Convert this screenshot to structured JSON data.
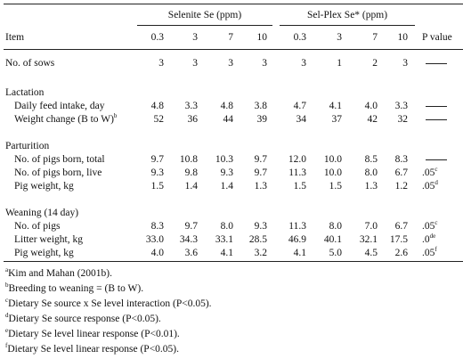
{
  "header": {
    "group1": "Selenite Se (ppm)",
    "group2": "Sel-Plex Se* (ppm)",
    "item": "Item",
    "levels": [
      "0.3",
      "3",
      "7",
      "10",
      "0.3",
      "3",
      "7",
      "10"
    ],
    "pvalue": "P value"
  },
  "rows": [
    {
      "type": "data",
      "label": "No. of sows",
      "values": [
        "3",
        "3",
        "3",
        "3",
        "3",
        "1",
        "2",
        "3"
      ],
      "p": "",
      "p_dash": true,
      "p_sup": ""
    },
    {
      "type": "section",
      "label": "Lactation"
    },
    {
      "type": "data",
      "sub": true,
      "label": "Daily feed intake, day",
      "values": [
        "4.8",
        "3.3",
        "4.8",
        "3.8",
        "4.7",
        "4.1",
        "4.0",
        "3.3"
      ],
      "p": "",
      "p_dash": true,
      "p_sup": ""
    },
    {
      "type": "data",
      "sub": true,
      "label": "Weight change (B to W)",
      "label_sup": "b",
      "values": [
        "52",
        "36",
        "44",
        "39",
        "34",
        "37",
        "42",
        "32"
      ],
      "p": "",
      "p_dash": true,
      "p_sup": ""
    },
    {
      "type": "section",
      "label": "Parturition"
    },
    {
      "type": "data",
      "sub": true,
      "label": "No. of pigs born, total",
      "values": [
        "9.7",
        "10.8",
        "10.3",
        "9.7",
        "12.0",
        "10.0",
        "8.5",
        "8.3"
      ],
      "p": "",
      "p_dash": true,
      "p_sup": ""
    },
    {
      "type": "data",
      "sub": true,
      "label": "No. of pigs born, live",
      "values": [
        "9.3",
        "9.8",
        "9.3",
        "9.7",
        "11.3",
        "10.0",
        "8.0",
        "6.7"
      ],
      "p": ".05",
      "p_dash": false,
      "p_sup": "c"
    },
    {
      "type": "data",
      "sub": true,
      "label": "Pig weight, kg",
      "values": [
        "1.5",
        "1.4",
        "1.4",
        "1.3",
        "1.5",
        "1.5",
        "1.3",
        "1.2"
      ],
      "p": ".05",
      "p_dash": false,
      "p_sup": "d"
    },
    {
      "type": "section",
      "label": "Weaning (14 day)"
    },
    {
      "type": "data",
      "sub": true,
      "label": "No. of pigs",
      "values": [
        "8.3",
        "9.7",
        "8.0",
        "9.3",
        "11.3",
        "8.0",
        "7.0",
        "6.7"
      ],
      "p": ".05",
      "p_dash": false,
      "p_sup": "c"
    },
    {
      "type": "data",
      "sub": true,
      "label": "Litter weight, kg",
      "values": [
        "33.0",
        "34.3",
        "33.1",
        "28.5",
        "46.9",
        "40.1",
        "32.1",
        "17.5"
      ],
      "p": ".0",
      "p_dash": false,
      "p_sup": "de"
    },
    {
      "type": "data",
      "sub": true,
      "label": "Pig weight, kg",
      "values": [
        "4.0",
        "3.6",
        "4.1",
        "3.2",
        "4.1",
        "5.0",
        "4.5",
        "2.6"
      ],
      "p": ".05",
      "p_dash": false,
      "p_sup": "f"
    }
  ],
  "footnotes": [
    {
      "mark": "a",
      "text": "Kim and Mahan (2001b)."
    },
    {
      "mark": "b",
      "text": "Breeding to weaning = (B to W)."
    },
    {
      "mark": "c",
      "text": "Dietary Se source x Se level interaction (P<0.05)."
    },
    {
      "mark": "d",
      "text": "Dietary Se source response (P<0.05)."
    },
    {
      "mark": "e",
      "text": "Dietary Se level linear response (P<0.01)."
    },
    {
      "mark": "f",
      "text": "Dietary Se level linear response (P<0.05)."
    }
  ]
}
